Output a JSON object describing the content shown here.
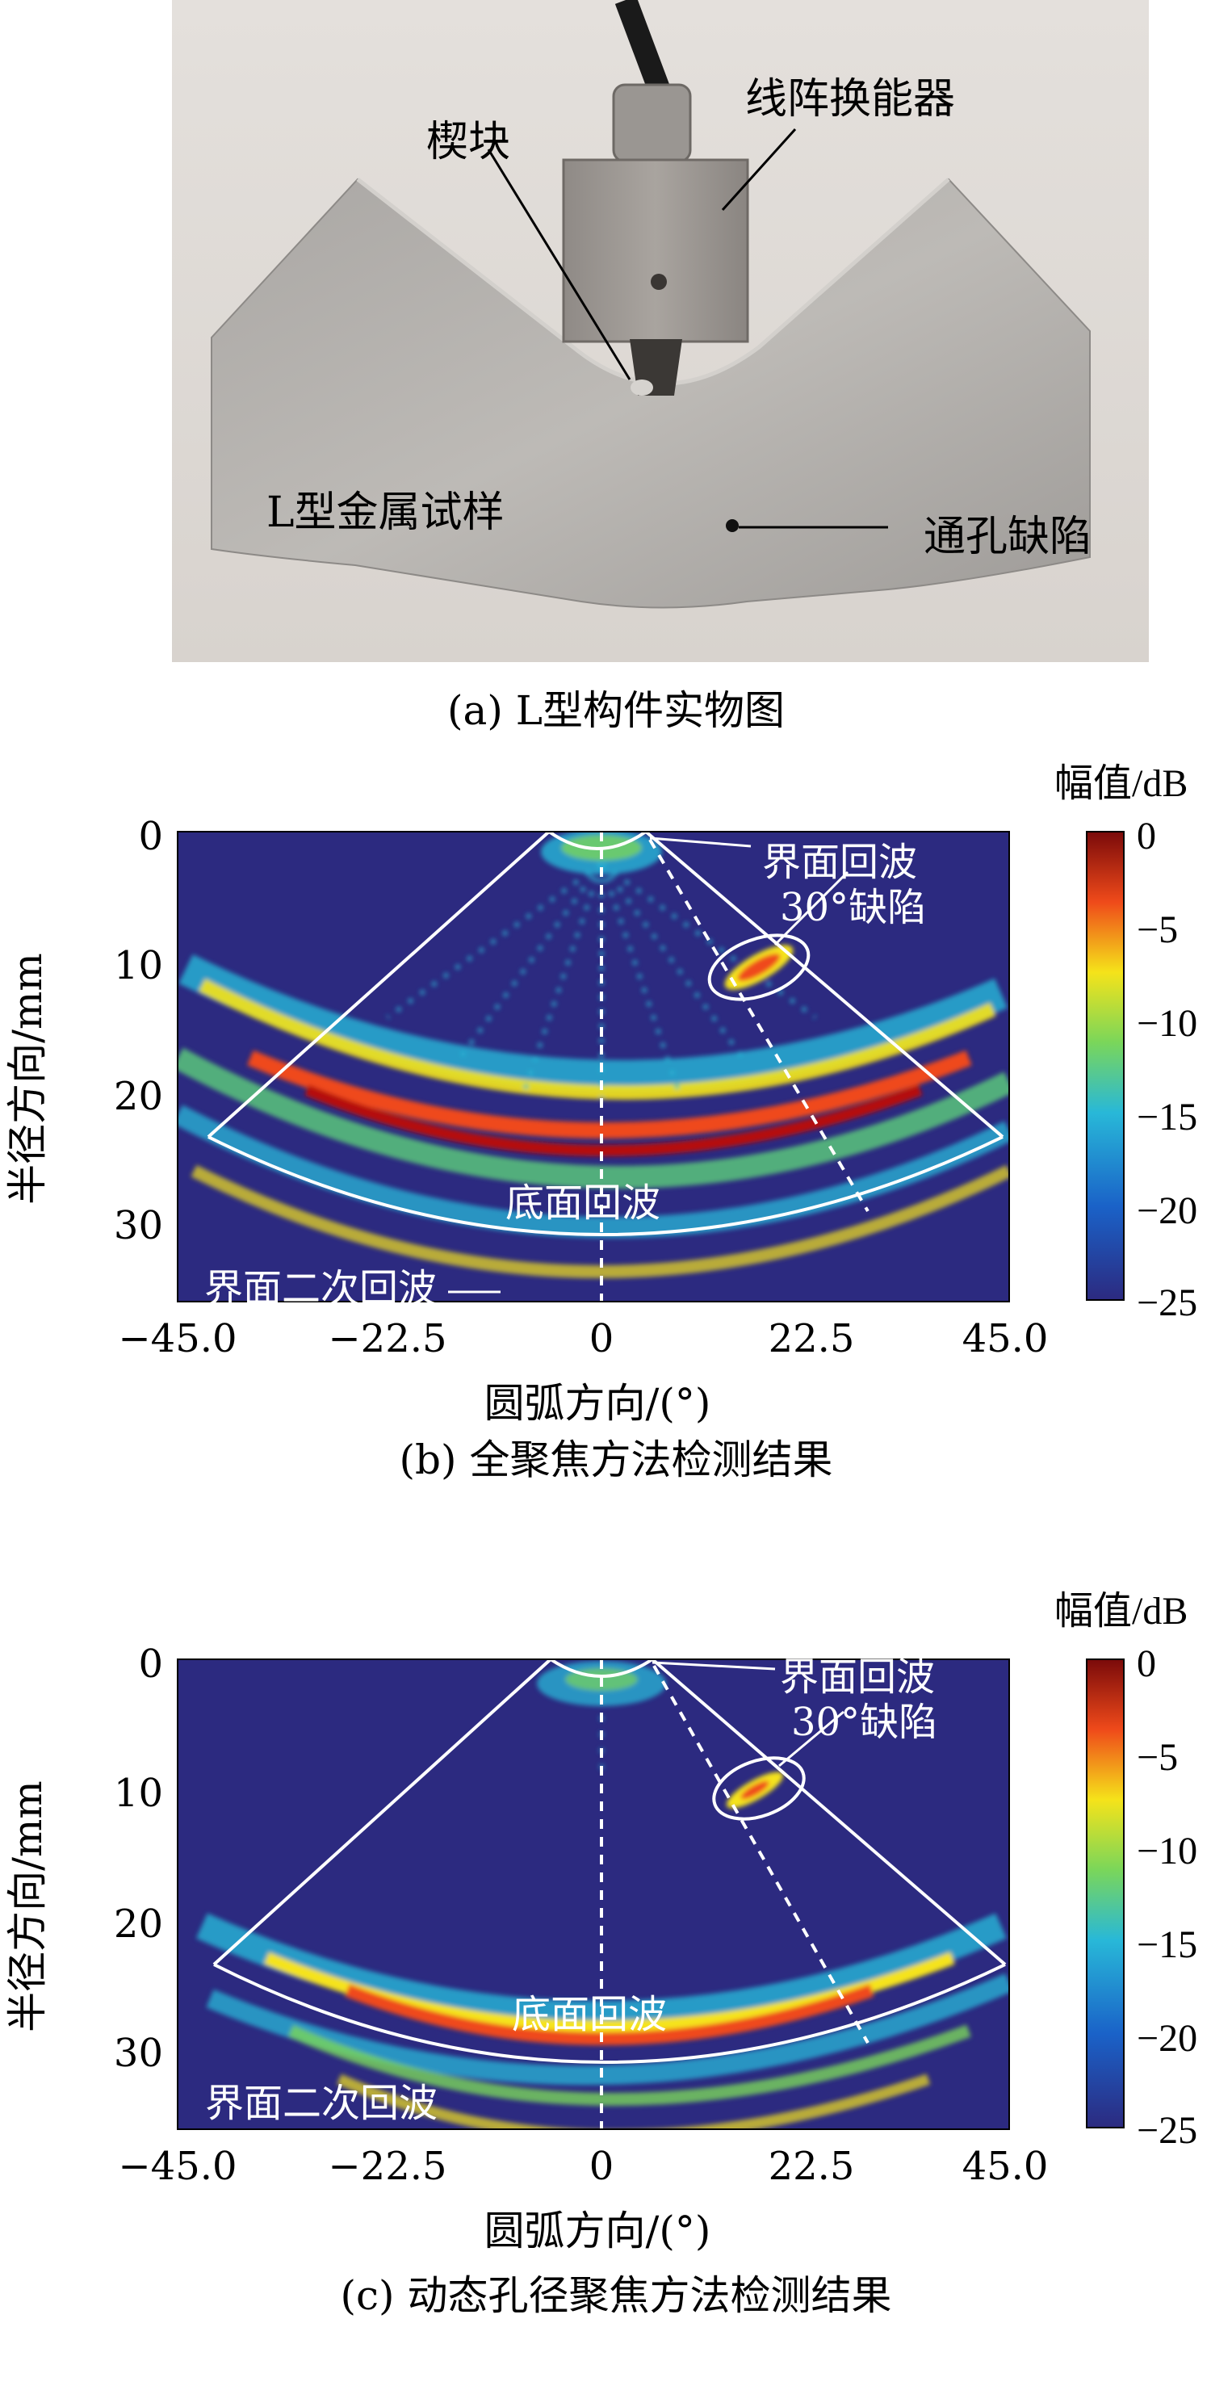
{
  "panel_a": {
    "caption": "(a) L型构件实物图",
    "labels": {
      "wedge": "楔块",
      "transducer": "线阵换能器",
      "specimen": "L型金属试样",
      "defect": "通孔缺陷"
    }
  },
  "panel_b": {
    "caption": "(b) 全聚焦方法检测结果",
    "annotations": {
      "interface_echo": "界面回波",
      "defect": "30°缺陷",
      "bottom_echo": "底面回波",
      "second_interface_echo": "界面二次回波"
    }
  },
  "panel_c": {
    "caption": "(c) 动态孔径聚焦方法检测结果",
    "annotations": {
      "interface_echo": "界面回波",
      "defect": "30°缺陷",
      "bottom_echo": "底面回波",
      "second_interface_echo": "界面二次回波"
    }
  },
  "colors": {
    "background_low": "#2c2a80",
    "max": "#7a0a0a",
    "mid": "#f5e31a",
    "cyan": "#28b8d8"
  },
  "chart_data": [
    {
      "type": "heatmap",
      "xlabel": "圆弧方向/(°)",
      "ylabel": "半径方向/mm",
      "colorbar_label": "幅值/dB",
      "xticks": [
        "−45.0",
        "−22.5",
        "0",
        "22.5",
        "45.0"
      ],
      "yticks": [
        "0",
        "10",
        "20",
        "30"
      ],
      "colorbar_ticks": [
        "0",
        "−5",
        "−10",
        "−15",
        "−20",
        "−25"
      ],
      "xlim": [
        -45,
        45
      ],
      "ylim": [
        0,
        36
      ],
      "clim": [
        -25,
        0
      ]
    },
    {
      "type": "heatmap",
      "xlabel": "圆弧方向/(°)",
      "ylabel": "半径方向/mm",
      "colorbar_label": "幅值/dB",
      "xticks": [
        "−45.0",
        "−22.5",
        "0",
        "22.5",
        "45.0"
      ],
      "yticks": [
        "0",
        "10",
        "20",
        "30"
      ],
      "colorbar_ticks": [
        "0",
        "−5",
        "−10",
        "−15",
        "−20",
        "−25"
      ],
      "xlim": [
        -45,
        45
      ],
      "ylim": [
        0,
        36
      ],
      "clim": [
        -25,
        0
      ]
    }
  ]
}
